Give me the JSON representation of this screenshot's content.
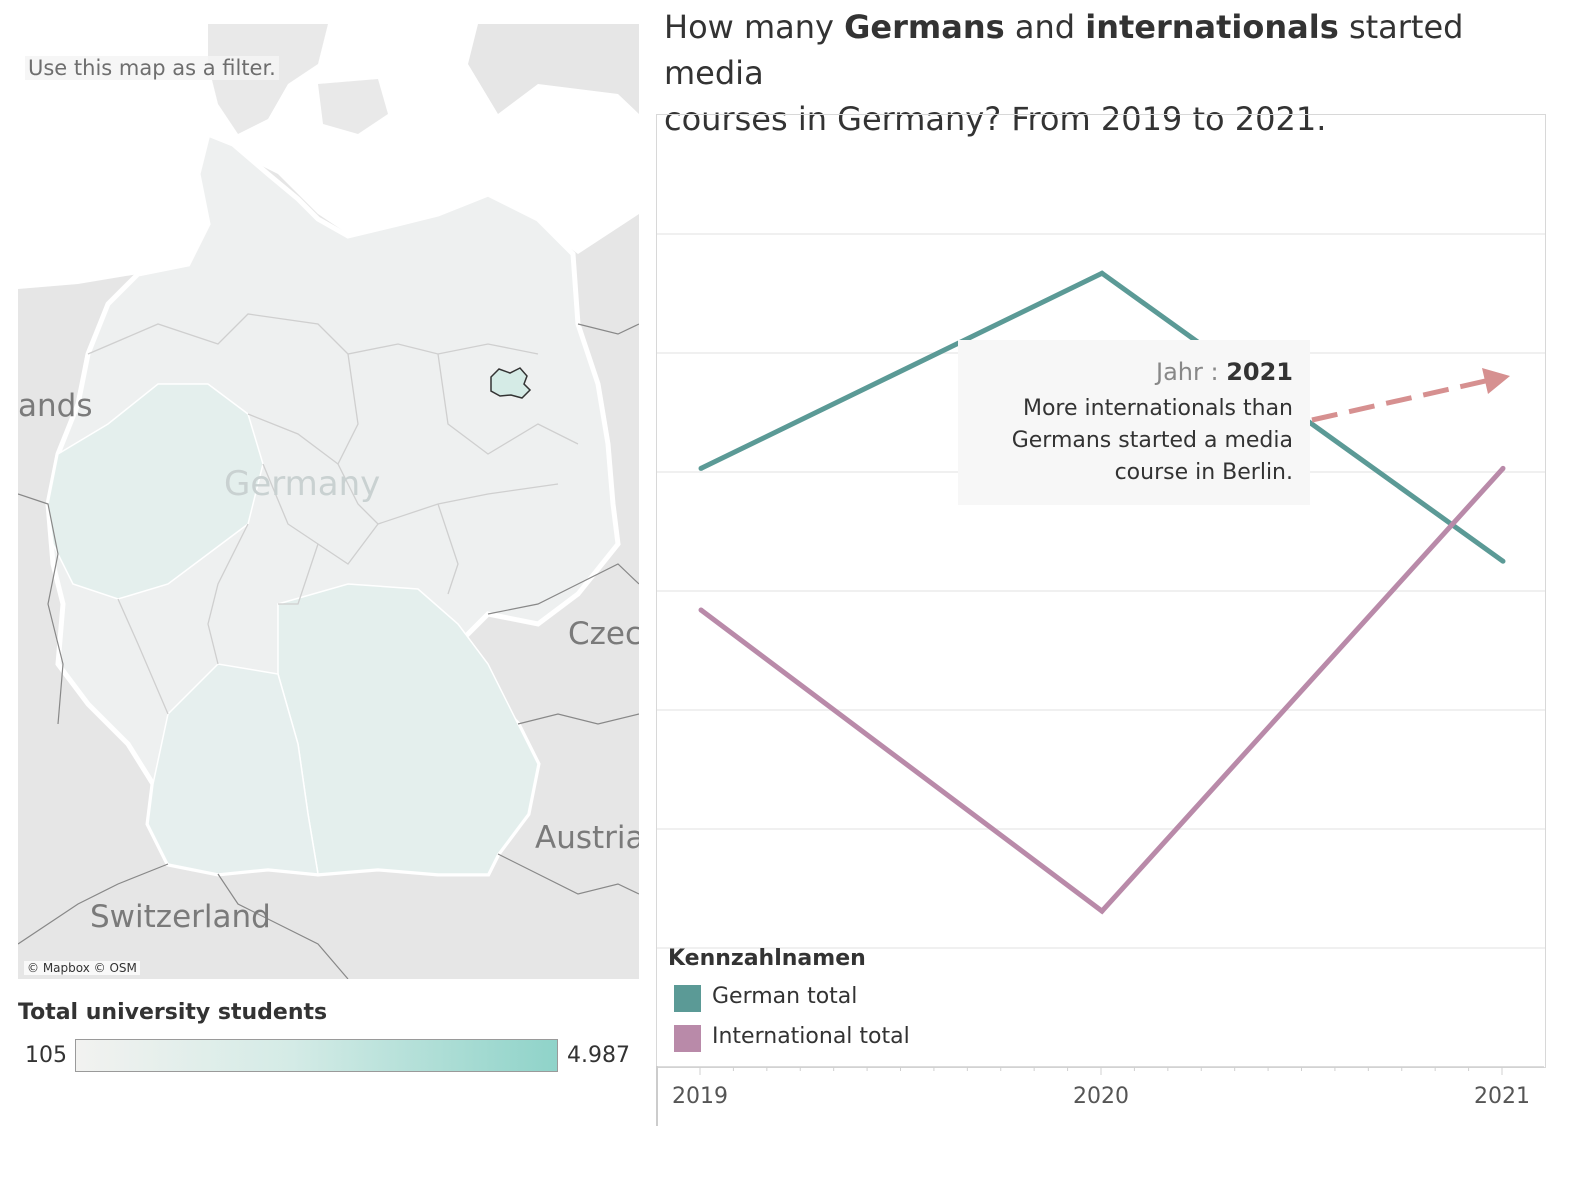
{
  "map": {
    "hint": "Use this map as a filter.",
    "labels": {
      "germany": "Germany",
      "netherlands": "ands",
      "czechia": "Czec",
      "austria": "Austria",
      "switzerland": "Switzerland"
    },
    "attribution": "© Mapbox © OSM",
    "colors": {
      "land": "#f1f1f1",
      "water": "#ffffff",
      "background": "#e6e6e6",
      "region_fill": "#e6efee",
      "highlight": "#d5ebe6"
    }
  },
  "legend": {
    "title": "Total university students",
    "min_label": "105",
    "max_label": "4.987",
    "min_color": "#f2f2f0",
    "max_color": "#8fd3c9"
  },
  "chart_title": {
    "part1": "How many ",
    "bold1": "Germans",
    "part2": " and ",
    "bold2": "internationals",
    "part3": " started media",
    "line2": "courses in Germany? From 2019 to 2021."
  },
  "annotation": {
    "label": "Jahr : ",
    "year": "2021",
    "text": "More internationals than Germans started a media course in Berlin."
  },
  "chart_data": {
    "type": "line",
    "title": "How many Germans and internationals started media courses in Germany? From 2019 to 2021.",
    "x": [
      "2019",
      "2020",
      "2021"
    ],
    "ylim": [
      0,
      8
    ],
    "y_gridlines": 7,
    "y_ticks_shown": false,
    "legend_title": "Kennzahlnamen",
    "legend_position": "bottom-left",
    "series": [
      {
        "name": "German total",
        "color": "#5b9a96",
        "values": [
          5.03,
          6.67,
          4.25
        ]
      },
      {
        "name": "International total",
        "color": "#b98aa9",
        "values": [
          3.84,
          1.31,
          5.03
        ]
      }
    ]
  }
}
